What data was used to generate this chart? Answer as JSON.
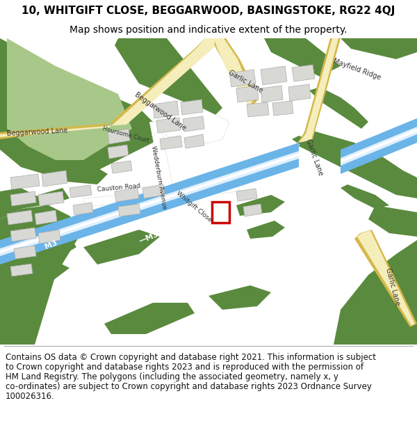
{
  "title_line1": "10, WHITGIFT CLOSE, BEGGARWOOD, BASINGSTOKE, RG22 4QJ",
  "title_line2": "Map shows position and indicative extent of the property.",
  "footer_lines": [
    "Contains OS data © Crown copyright and database right 2021. This information is subject",
    "to Crown copyright and database rights 2023 and is reproduced with the permission of",
    "HM Land Registry. The polygons (including the associated geometry, namely x, y",
    "co-ordinates) are subject to Crown copyright and database rights 2023 Ordnance Survey",
    "100026316."
  ],
  "bg_color": "#ffffff",
  "map_bg": "#f2f0eb",
  "green1": "#5a8a3e",
  "green2": "#6fa04a",
  "green_light": "#a8c88a",
  "road_yellow_outer": "#d4b84a",
  "road_yellow_inner": "#f5edba",
  "motorway_blue": "#6ab4e8",
  "motorway_edge": "#4898d0",
  "white": "#ffffff",
  "building_fill": "#d8d8d4",
  "building_edge": "#aaaaaa",
  "road_fill": "#e8e6e0",
  "road_edge": "#cccccc",
  "red_box": "#cc0000",
  "text_dark": "#333333",
  "title_fs": 11,
  "sub_fs": 10,
  "footer_fs": 8.5,
  "label_fs": 7.5
}
